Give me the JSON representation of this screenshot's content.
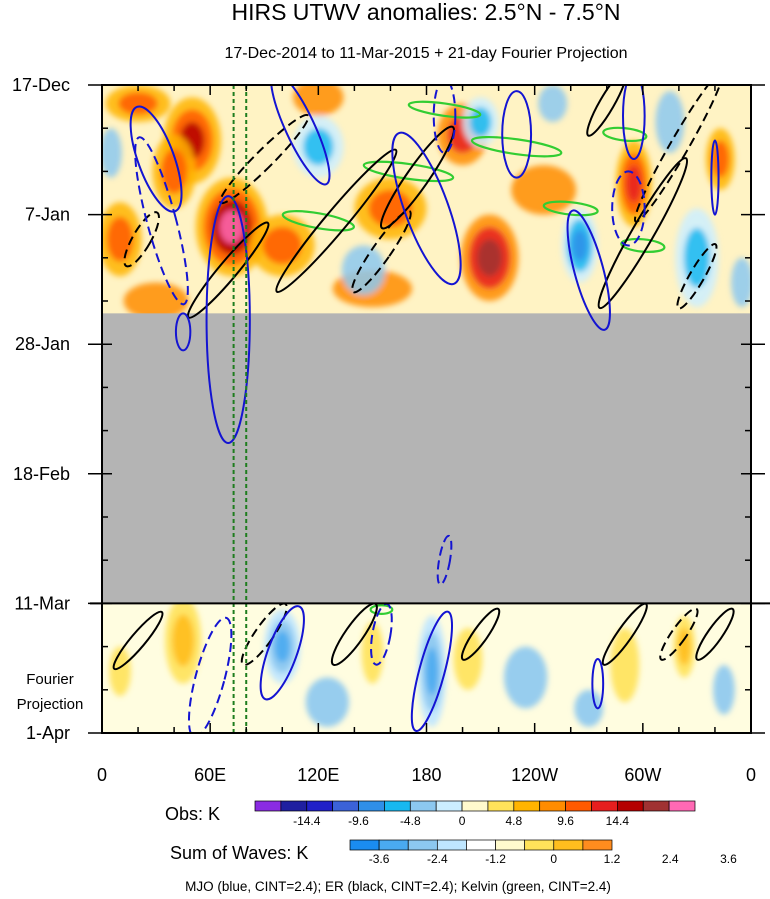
{
  "chart_data": {
    "type": "heatmap",
    "title": "HIRS UTWV anomalies: 2.5°N - 7.5°N",
    "subtitle": "17-Dec-2014 to 11-Mar-2015 + 21-day Fourier Projection",
    "x_tick_labels": [
      "0",
      "60E",
      "120E",
      "180",
      "120W",
      "60W",
      "0"
    ],
    "x_ticks_deg": [
      0,
      60,
      120,
      180,
      240,
      300,
      360
    ],
    "x_range_deg": [
      0,
      360
    ],
    "y_tick_labels": [
      "17-Dec",
      "7-Jan",
      "28-Jan",
      "18-Feb",
      "11-Mar",
      "1-Apr"
    ],
    "y_ticks_day": [
      0,
      21,
      42,
      63,
      84,
      105
    ],
    "y_range_day": [
      0,
      105
    ],
    "obs_end_day": 84,
    "missing_data_start_day": 37,
    "fourier_label": [
      "Fourier",
      "Projection"
    ],
    "obs_colorbar": {
      "label": "Obs: K",
      "tick_labels": [
        "-14.4",
        "-9.6",
        "-4.8",
        "0",
        "4.8",
        "9.6",
        "14.4"
      ],
      "colors": [
        "#8a2be2",
        "#1f1fa0",
        "#2020c8",
        "#3b62d8",
        "#2f8fe8",
        "#18b8f0",
        "#8cc8f0",
        "#cceeff",
        "#fffacd",
        "#ffe25a",
        "#ffb400",
        "#ff8c00",
        "#ff5a00",
        "#e61e1e",
        "#b40000",
        "#a03232",
        "#ff69b4"
      ]
    },
    "waves_colorbar": {
      "label": "Sum of Waves: K",
      "tick_labels": [
        "-3.6",
        "-2.4",
        "-1.2",
        "0",
        "1.2",
        "2.4",
        "3.6"
      ],
      "colors": [
        "#1a8cf0",
        "#4aaaf0",
        "#8cc8f0",
        "#bfe6ff",
        "#ffffff",
        "#fffacd",
        "#ffe25a",
        "#ffbe1e",
        "#ff8c1e"
      ]
    },
    "legend_caption": "MJO (blue, CINT=2.4); ER (black, CINT=2.4); Kelvin (green, CINT=2.4)",
    "series_colors": {
      "mjo": "#1414d2",
      "er": "#000000",
      "kelvin": "#32cd32",
      "marker": "#1e7d1e",
      "missing": "#b4b4b4"
    },
    "marker_lines_deg": [
      73,
      80
    ],
    "anomaly_blobs": [
      {
        "lon": 50,
        "day": 9,
        "rx": 16,
        "ry": 7,
        "v": 14
      },
      {
        "lon": 40,
        "day": 14,
        "rx": 12,
        "ry": 6,
        "v": 9
      },
      {
        "lon": 20,
        "day": 3,
        "rx": 18,
        "ry": 3,
        "v": 8
      },
      {
        "lon": 72,
        "day": 23,
        "rx": 20,
        "ry": 8,
        "v": 18
      },
      {
        "lon": 100,
        "day": 26,
        "rx": 18,
        "ry": 5,
        "v": 9
      },
      {
        "lon": 10,
        "day": 25,
        "rx": 12,
        "ry": 6,
        "v": 8
      },
      {
        "lon": 160,
        "day": 20,
        "rx": 20,
        "ry": 5,
        "v": 8
      },
      {
        "lon": 200,
        "day": 8,
        "rx": 14,
        "ry": 5,
        "v": 11
      },
      {
        "lon": 215,
        "day": 28,
        "rx": 16,
        "ry": 7,
        "v": 15
      },
      {
        "lon": 245,
        "day": 17,
        "rx": 18,
        "ry": 4,
        "v": 7
      },
      {
        "lon": 295,
        "day": 16,
        "rx": 10,
        "ry": 7,
        "v": 12
      },
      {
        "lon": 343,
        "day": 12,
        "rx": 8,
        "ry": 5,
        "v": 8
      },
      {
        "lon": 120,
        "day": 2,
        "rx": 14,
        "ry": 3,
        "v": 7
      },
      {
        "lon": 30,
        "day": 35,
        "rx": 18,
        "ry": 3,
        "v": 7
      },
      {
        "lon": 150,
        "day": 33,
        "rx": 22,
        "ry": 3,
        "v": 6
      },
      {
        "lon": 120,
        "day": 10,
        "rx": 14,
        "ry": 5,
        "v": -8
      },
      {
        "lon": 210,
        "day": 6,
        "rx": 10,
        "ry": 4,
        "v": -8
      },
      {
        "lon": 265,
        "day": 26,
        "rx": 10,
        "ry": 6,
        "v": -12
      },
      {
        "lon": 250,
        "day": 3,
        "rx": 8,
        "ry": 3,
        "v": -7
      },
      {
        "lon": 330,
        "day": 28,
        "rx": 12,
        "ry": 8,
        "v": -9
      },
      {
        "lon": 315,
        "day": 6,
        "rx": 8,
        "ry": 5,
        "v": -7
      },
      {
        "lon": 5,
        "day": 11,
        "rx": 6,
        "ry": 4,
        "v": -7
      },
      {
        "lon": 145,
        "day": 30,
        "rx": 12,
        "ry": 4,
        "v": -6
      },
      {
        "lon": 355,
        "day": 32,
        "rx": 6,
        "ry": 4,
        "v": -6
      }
    ],
    "wave_blobs": [
      {
        "lon": 45,
        "day": 90,
        "rx": 10,
        "ry": 7,
        "v": 2.8
      },
      {
        "lon": 10,
        "day": 95,
        "rx": 6,
        "ry": 4,
        "v": 1.4
      },
      {
        "lon": 100,
        "day": 91,
        "rx": 10,
        "ry": 6,
        "v": -3.0
      },
      {
        "lon": 125,
        "day": 100,
        "rx": 12,
        "ry": 4,
        "v": -1.3
      },
      {
        "lon": 150,
        "day": 92,
        "rx": 6,
        "ry": 5,
        "v": 1.3
      },
      {
        "lon": 183,
        "day": 95,
        "rx": 8,
        "ry": 9,
        "v": -3.6
      },
      {
        "lon": 203,
        "day": 93,
        "rx": 8,
        "ry": 5,
        "v": 1.3
      },
      {
        "lon": 235,
        "day": 96,
        "rx": 12,
        "ry": 5,
        "v": -1.3
      },
      {
        "lon": 290,
        "day": 94,
        "rx": 8,
        "ry": 6,
        "v": 1.6
      },
      {
        "lon": 323,
        "day": 91,
        "rx": 6,
        "ry": 5,
        "v": 2.6
      },
      {
        "lon": 345,
        "day": 98,
        "rx": 6,
        "ry": 4,
        "v": -1.3
      },
      {
        "lon": 270,
        "day": 101,
        "rx": 8,
        "ry": 3,
        "v": -1.3
      }
    ],
    "mjo_contours": [
      {
        "lon": 30,
        "day": 12,
        "rx": 10,
        "ry": 9,
        "rot": -20,
        "dash": false
      },
      {
        "lon": 33,
        "day": 22,
        "rx": 8,
        "ry": 14,
        "rot": -15,
        "dash": true
      },
      {
        "lon": 70,
        "day": 38,
        "rx": 12,
        "ry": 20,
        "rot": 0,
        "dash": false
      },
      {
        "lon": 45,
        "day": 40,
        "rx": 4,
        "ry": 3,
        "rot": 0,
        "dash": false
      },
      {
        "lon": 110,
        "day": 7,
        "rx": 8,
        "ry": 10,
        "rot": -25,
        "dash": false
      },
      {
        "lon": 180,
        "day": 20,
        "rx": 12,
        "ry": 13,
        "rot": -20,
        "dash": false
      },
      {
        "lon": 190,
        "day": 5,
        "rx": 6,
        "ry": 6,
        "rot": 0,
        "dash": true
      },
      {
        "lon": 230,
        "day": 8,
        "rx": 8,
        "ry": 7,
        "rot": 0,
        "dash": false
      },
      {
        "lon": 270,
        "day": 30,
        "rx": 8,
        "ry": 10,
        "rot": -15,
        "dash": false
      },
      {
        "lon": 292,
        "day": 20,
        "rx": 9,
        "ry": 6,
        "rot": 0,
        "dash": true
      },
      {
        "lon": 295,
        "day": 5,
        "rx": 6,
        "ry": 7,
        "rot": 0,
        "dash": false
      },
      {
        "lon": 190,
        "day": 77,
        "rx": 3,
        "ry": 4,
        "rot": 10,
        "dash": true
      },
      {
        "lon": 155,
        "day": 89,
        "rx": 5,
        "ry": 5,
        "rot": 10,
        "dash": true
      },
      {
        "lon": 183,
        "day": 95,
        "rx": 7,
        "ry": 10,
        "rot": 15,
        "dash": false
      },
      {
        "lon": 100,
        "day": 92,
        "rx": 8,
        "ry": 8,
        "rot": 20,
        "dash": false
      },
      {
        "lon": 60,
        "day": 96,
        "rx": 8,
        "ry": 10,
        "rot": 15,
        "dash": true
      },
      {
        "lon": 275,
        "day": 97,
        "rx": 3,
        "ry": 4,
        "rot": 0,
        "dash": false
      },
      {
        "lon": 340,
        "day": 15,
        "rx": 2,
        "ry": 6,
        "rot": 0,
        "dash": false
      }
    ],
    "er_contours": [
      {
        "lon": 22,
        "day": 25,
        "rx": 5,
        "ry": 5,
        "rot": 30,
        "dash": true
      },
      {
        "lon": 70,
        "day": 30,
        "rx": 5,
        "ry": 10,
        "rot": 40,
        "dash": false
      },
      {
        "lon": 130,
        "day": 22,
        "rx": 6,
        "ry": 15,
        "rot": 40,
        "dash": false
      },
      {
        "lon": 155,
        "day": 27,
        "rx": 5,
        "ry": 8,
        "rot": 35,
        "dash": true
      },
      {
        "lon": 175,
        "day": 15,
        "rx": 6,
        "ry": 10,
        "rot": 35,
        "dash": false
      },
      {
        "lon": 90,
        "day": 12,
        "rx": 5,
        "ry": 10,
        "rot": 45,
        "dash": true
      },
      {
        "lon": 300,
        "day": 24,
        "rx": 6,
        "ry": 14,
        "rot": 30,
        "dash": false
      },
      {
        "lon": 320,
        "day": 10,
        "rx": 5,
        "ry": 14,
        "rot": 30,
        "dash": true
      },
      {
        "lon": 330,
        "day": 31,
        "rx": 4,
        "ry": 6,
        "rot": 30,
        "dash": true
      },
      {
        "lon": 280,
        "day": 3,
        "rx": 4,
        "ry": 6,
        "rot": 30,
        "dash": false
      },
      {
        "lon": 20,
        "day": 90,
        "rx": 4,
        "ry": 6,
        "rot": 40,
        "dash": false
      },
      {
        "lon": 90,
        "day": 89,
        "rx": 5,
        "ry": 6,
        "rot": 35,
        "dash": true
      },
      {
        "lon": 140,
        "day": 89,
        "rx": 5,
        "ry": 6,
        "rot": 35,
        "dash": false
      },
      {
        "lon": 210,
        "day": 89,
        "rx": 4,
        "ry": 5,
        "rot": 35,
        "dash": false
      },
      {
        "lon": 290,
        "day": 89,
        "rx": 4,
        "ry": 6,
        "rot": 35,
        "dash": false
      },
      {
        "lon": 320,
        "day": 89,
        "rx": 4,
        "ry": 5,
        "rot": 35,
        "dash": true
      },
      {
        "lon": 340,
        "day": 89,
        "rx": 4,
        "ry": 5,
        "rot": 35,
        "dash": false
      }
    ],
    "kelvin_contours": [
      {
        "lon": 120,
        "day": 22,
        "rx": 20,
        "ry": 1.2,
        "rot": 10
      },
      {
        "lon": 170,
        "day": 14,
        "rx": 25,
        "ry": 1.2,
        "rot": 8
      },
      {
        "lon": 190,
        "day": 4,
        "rx": 20,
        "ry": 1,
        "rot": 8
      },
      {
        "lon": 230,
        "day": 10,
        "rx": 25,
        "ry": 1.2,
        "rot": 8
      },
      {
        "lon": 260,
        "day": 20,
        "rx": 15,
        "ry": 1,
        "rot": 6
      },
      {
        "lon": 290,
        "day": 8,
        "rx": 12,
        "ry": 1,
        "rot": 6
      },
      {
        "lon": 300,
        "day": 26,
        "rx": 12,
        "ry": 1,
        "rot": 5
      },
      {
        "lon": 155,
        "day": 85,
        "rx": 6,
        "ry": 0.7,
        "rot": 0
      }
    ]
  }
}
